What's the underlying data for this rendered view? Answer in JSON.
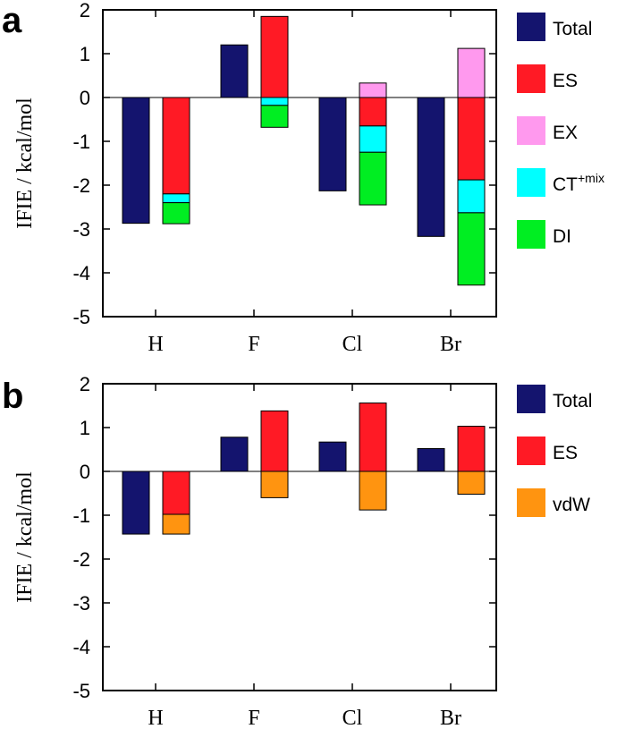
{
  "chart_data": [
    {
      "panel_label": "a",
      "type": "bar",
      "ylabel": "IFIE / kcal/mol",
      "ylim": [
        -5,
        2
      ],
      "yticks": [
        2,
        1,
        0,
        -1,
        -2,
        -3,
        -4,
        -5
      ],
      "categories": [
        "H",
        "F",
        "Cl",
        "Br"
      ],
      "total": [
        -2.87,
        1.2,
        -2.13,
        -3.17
      ],
      "stacked_components": [
        "ES",
        "EX",
        "CT+mix",
        "DI"
      ],
      "stacked": [
        {
          "ES": -2.2,
          "EX": 0.0,
          "CT+mix": -0.2,
          "DI": -0.48
        },
        {
          "ES": 1.85,
          "EX": 0.0,
          "CT+mix": -0.18,
          "DI": -0.5
        },
        {
          "ES": -0.65,
          "EX": 0.33,
          "CT+mix": -0.6,
          "DI": -1.2
        },
        {
          "ES": -1.88,
          "EX": 1.12,
          "CT+mix": -0.75,
          "DI": -1.65
        }
      ],
      "legend": [
        {
          "label": "Total",
          "sup": "",
          "color": "#14146e"
        },
        {
          "label": "ES",
          "sup": "",
          "color": "#ff1a25"
        },
        {
          "label": "EX",
          "sup": "",
          "color": "#ff99ee"
        },
        {
          "label": "CT",
          "sup": "+mix",
          "color": "#00ffff"
        },
        {
          "label": "DI",
          "sup": "",
          "color": "#00ee22"
        }
      ]
    },
    {
      "panel_label": "b",
      "type": "bar",
      "ylabel": "IFIE / kcal/mol",
      "ylim": [
        -5,
        2
      ],
      "yticks": [
        2,
        1,
        0,
        -1,
        -2,
        -3,
        -4,
        -5
      ],
      "categories": [
        "H",
        "F",
        "Cl",
        "Br"
      ],
      "total": [
        -1.43,
        0.78,
        0.67,
        0.52
      ],
      "stacked_components": [
        "ES",
        "vdW"
      ],
      "stacked": [
        {
          "ES": -0.98,
          "vdW": -0.45
        },
        {
          "ES": 1.38,
          "vdW": -0.6
        },
        {
          "ES": 1.56,
          "vdW": -0.88
        },
        {
          "ES": 1.03,
          "vdW": -0.52
        }
      ],
      "legend": [
        {
          "label": "Total",
          "sup": "",
          "color": "#14146e"
        },
        {
          "label": "ES",
          "sup": "",
          "color": "#ff1a25"
        },
        {
          "label": "vdW",
          "sup": "",
          "color": "#ff9410"
        }
      ]
    }
  ]
}
